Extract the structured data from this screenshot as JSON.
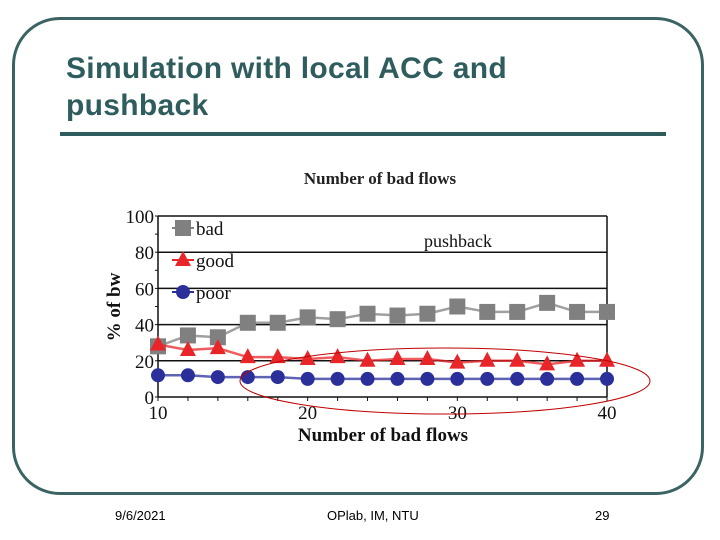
{
  "slide": {
    "title": "Simulation with local ACC and pushback",
    "title_line1": "Simulation with local ACC and",
    "title_line2": "pushback",
    "footer": {
      "date": "9/6/2021",
      "organization": "OPlab, IM, NTU",
      "page_number": "29"
    },
    "colors": {
      "frame": "#3b6363",
      "title": "#2f5d5d",
      "highlight_ellipse": "#c00000"
    }
  },
  "chart_data": {
    "type": "line",
    "title": "Number of bad flows",
    "annotation": "pushback",
    "xlabel": "Number of bad flows",
    "ylabel": "% of bw",
    "x": [
      10,
      12,
      14,
      16,
      18,
      20,
      22,
      24,
      26,
      28,
      30,
      32,
      34,
      36,
      38,
      40
    ],
    "xlim": [
      10,
      40
    ],
    "ylim": [
      0,
      100
    ],
    "x_ticks": [
      10,
      20,
      30,
      40
    ],
    "y_ticks": [
      0,
      20,
      40,
      60,
      80,
      100
    ],
    "grid": "horizontal",
    "legend_position": "upper left",
    "series": [
      {
        "name": "bad",
        "marker": "square",
        "color": "#808080",
        "values": [
          28,
          34,
          33,
          41,
          41,
          44,
          43,
          46,
          45,
          46,
          50,
          47,
          47,
          52,
          47,
          47
        ]
      },
      {
        "name": "good",
        "marker": "triangle",
        "color": "#e8262a",
        "values": [
          29,
          26,
          27,
          22,
          22,
          21,
          22,
          20,
          21,
          21,
          19,
          20,
          20,
          18,
          20,
          20
        ]
      },
      {
        "name": "poor",
        "marker": "circle",
        "color": "#2a2f9a",
        "values": [
          12,
          12,
          11,
          11,
          11,
          10,
          10,
          10,
          10,
          10,
          10,
          10,
          10,
          10,
          10,
          10
        ]
      }
    ],
    "highlight": {
      "shape": "ellipse",
      "color": "#c00000",
      "covers_x_range": [
        16,
        40
      ]
    }
  }
}
